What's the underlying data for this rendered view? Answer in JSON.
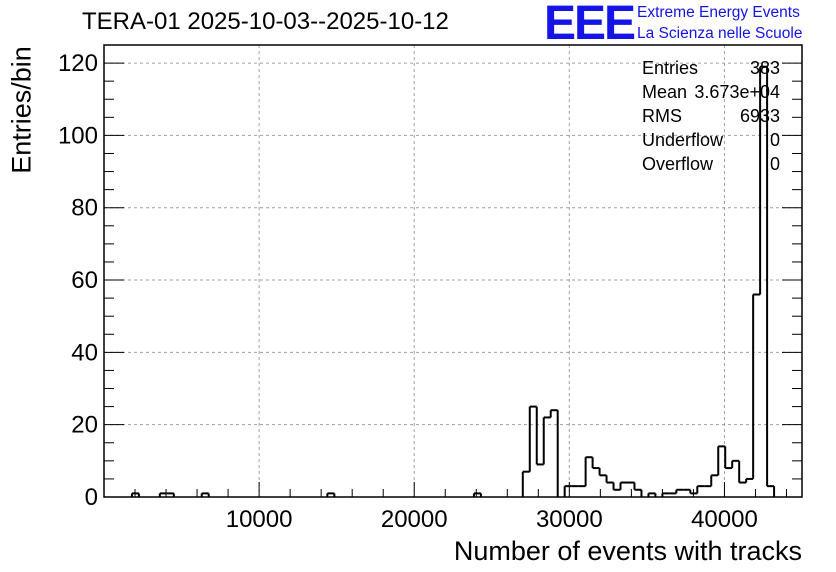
{
  "title": "TERA-01 2025-10-03--2025-10-12",
  "logo": {
    "mark": "EEE",
    "line1": "Extreme Energy Events",
    "line2": "La Scienza nelle Scuole",
    "color": "#1414e6"
  },
  "stats": [
    {
      "label": "Entries",
      "value": "383"
    },
    {
      "label": "Mean",
      "value": "3.673e+04"
    },
    {
      "label": "RMS",
      "value": "6933"
    },
    {
      "label": "Underflow",
      "value": "0"
    },
    {
      "label": "Overflow",
      "value": "0"
    }
  ],
  "chart_data": {
    "type": "histogram",
    "xlabel": "Number of events with tracks",
    "ylabel": "Entries/bin",
    "xlim": [
      0,
      45000
    ],
    "ylim": [
      0,
      125
    ],
    "x_ticks": [
      10000,
      20000,
      30000,
      40000
    ],
    "y_ticks": [
      0,
      20,
      40,
      60,
      80,
      100,
      120
    ],
    "grid": true,
    "line_color": "#000000",
    "bin_width": 450,
    "bins": [
      {
        "x": 1800,
        "y": 1
      },
      {
        "x": 3600,
        "y": 1
      },
      {
        "x": 4050,
        "y": 1
      },
      {
        "x": 6300,
        "y": 1
      },
      {
        "x": 14400,
        "y": 1
      },
      {
        "x": 23850,
        "y": 1
      },
      {
        "x": 27000,
        "y": 7
      },
      {
        "x": 27450,
        "y": 25
      },
      {
        "x": 27900,
        "y": 9
      },
      {
        "x": 28350,
        "y": 22
      },
      {
        "x": 28800,
        "y": 24
      },
      {
        "x": 29250,
        "y": 0
      },
      {
        "x": 29700,
        "y": 3
      },
      {
        "x": 30150,
        "y": 3
      },
      {
        "x": 30600,
        "y": 3
      },
      {
        "x": 31050,
        "y": 11
      },
      {
        "x": 31500,
        "y": 8
      },
      {
        "x": 31950,
        "y": 6
      },
      {
        "x": 32400,
        "y": 4
      },
      {
        "x": 32850,
        "y": 2
      },
      {
        "x": 33300,
        "y": 4
      },
      {
        "x": 33750,
        "y": 4
      },
      {
        "x": 34200,
        "y": 2
      },
      {
        "x": 35100,
        "y": 1
      },
      {
        "x": 36000,
        "y": 1
      },
      {
        "x": 36450,
        "y": 1
      },
      {
        "x": 36900,
        "y": 2
      },
      {
        "x": 37350,
        "y": 2
      },
      {
        "x": 37800,
        "y": 1
      },
      {
        "x": 38250,
        "y": 3
      },
      {
        "x": 38700,
        "y": 3
      },
      {
        "x": 39150,
        "y": 6
      },
      {
        "x": 39600,
        "y": 14
      },
      {
        "x": 40050,
        "y": 8
      },
      {
        "x": 40500,
        "y": 10
      },
      {
        "x": 40950,
        "y": 4
      },
      {
        "x": 41400,
        "y": 5
      },
      {
        "x": 41850,
        "y": 56
      },
      {
        "x": 42300,
        "y": 119
      },
      {
        "x": 42750,
        "y": 3
      }
    ]
  }
}
